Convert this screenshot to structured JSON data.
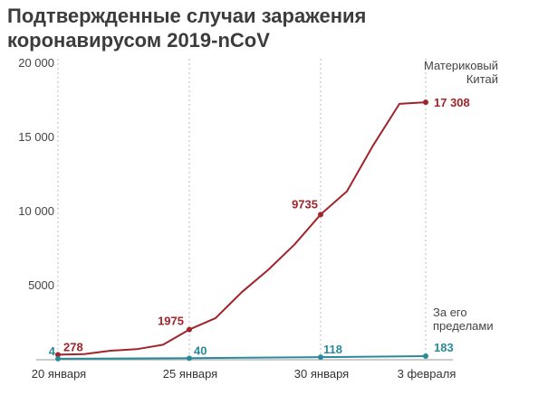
{
  "title_line1": "Подтвержденные случаи заражения",
  "title_line2": "коронавирусом 2019-nCoV",
  "chart_data": {
    "type": "line",
    "title": "Подтвержденные случаи заражения коронавирусом 2019-nCoV",
    "xlabel": "",
    "ylabel": "",
    "ylim": [
      0,
      20000
    ],
    "yticks": [
      {
        "value": 5000,
        "label": "5000"
      },
      {
        "value": 10000,
        "label": "10 000"
      },
      {
        "value": 15000,
        "label": "15 000"
      },
      {
        "value": 20000,
        "label": "20 000"
      }
    ],
    "xticks": [
      {
        "x": 0,
        "label": "20 января"
      },
      {
        "x": 5,
        "label": "25 января"
      },
      {
        "x": 10,
        "label": "30 января"
      },
      {
        "x": 14,
        "label": "3 февраля"
      }
    ],
    "grid": "vertical",
    "series": [
      {
        "name": "Материковый Китай",
        "name_lines": [
          "Материковый",
          "Китай"
        ],
        "color": "#a1242b",
        "x": [
          0,
          1,
          2,
          3,
          4,
          5,
          6,
          7,
          8,
          9,
          10,
          11,
          12,
          13,
          14
        ],
        "y": [
          278,
          320,
          550,
          650,
          950,
          1975,
          2750,
          4500,
          6000,
          7700,
          9735,
          11300,
          14400,
          17200,
          17308
        ],
        "labels": [
          {
            "index": 0,
            "text": "278"
          },
          {
            "index": 5,
            "text": "1975"
          },
          {
            "index": 10,
            "text": "9735"
          },
          {
            "index": 14,
            "text": "17 308"
          }
        ]
      },
      {
        "name": "За его пределами",
        "name_lines": [
          "За его",
          "пределами"
        ],
        "color": "#2a8a9a",
        "x": [
          0,
          5,
          10,
          14
        ],
        "y": [
          4,
          40,
          118,
          183
        ],
        "labels": [
          {
            "index": 0,
            "text": "4"
          },
          {
            "index": 1,
            "text": "40"
          },
          {
            "index": 2,
            "text": "118"
          },
          {
            "index": 3,
            "text": "183"
          }
        ]
      }
    ]
  }
}
